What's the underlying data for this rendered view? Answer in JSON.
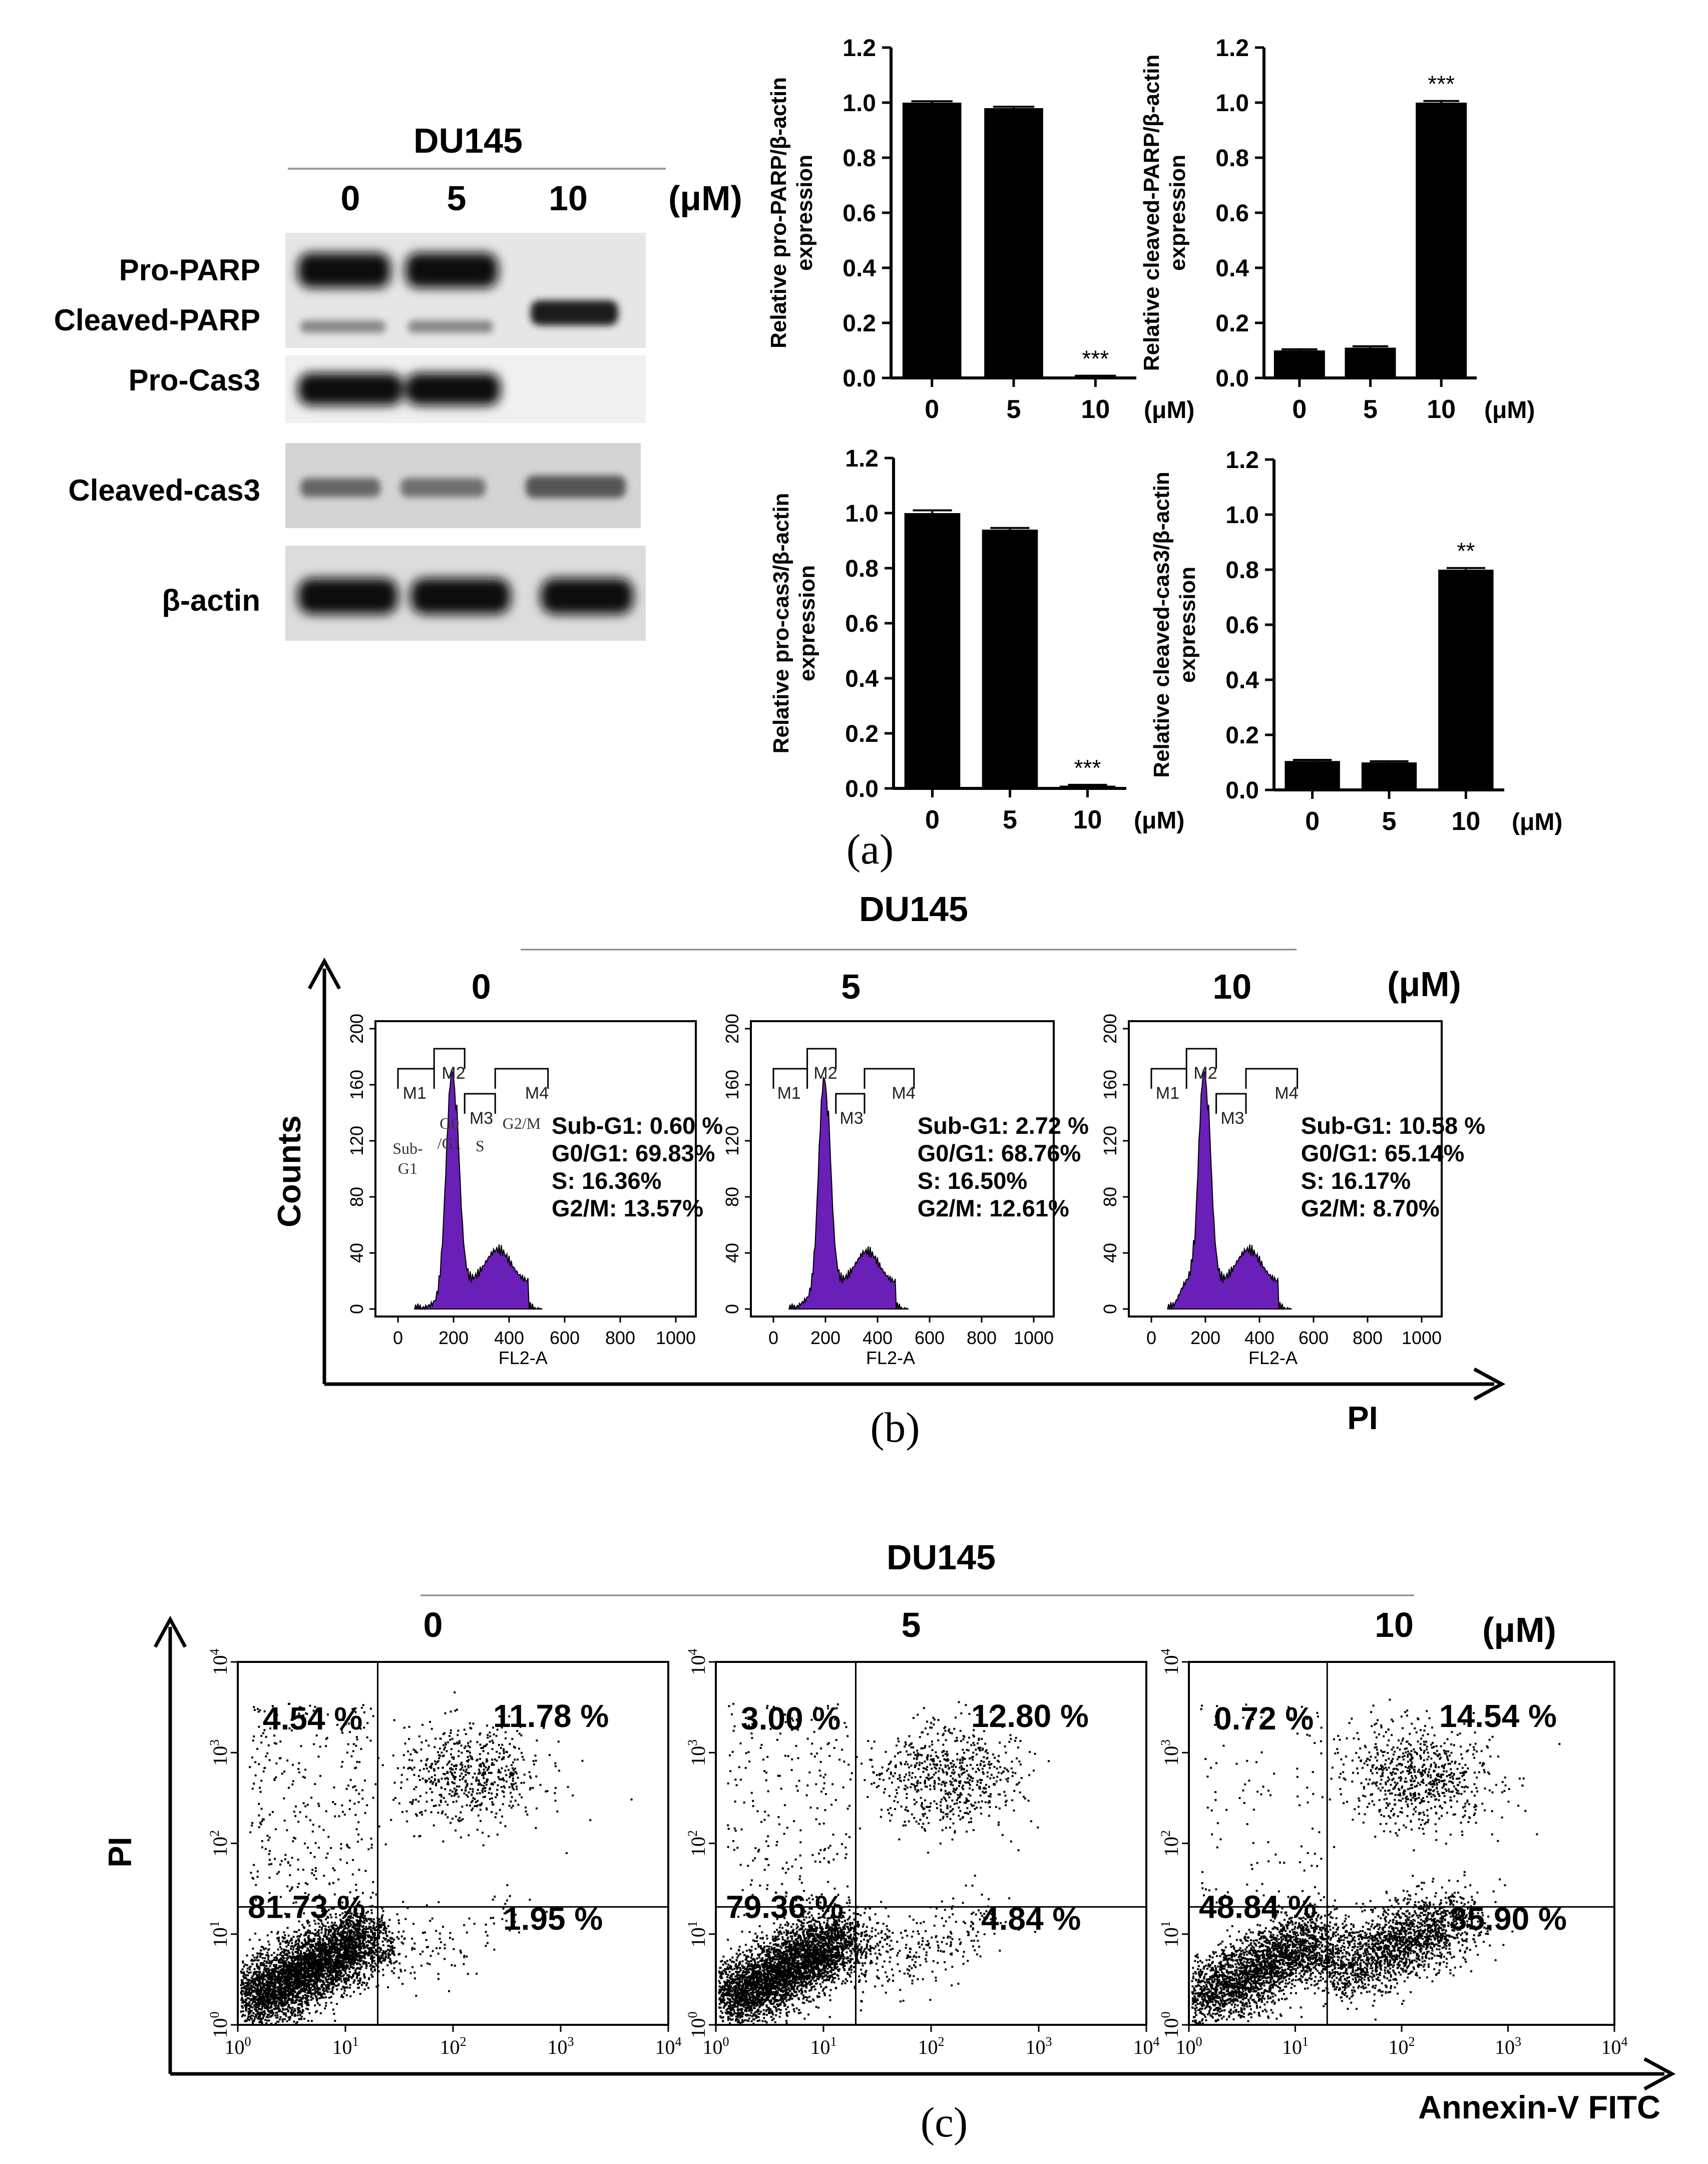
{
  "panel_a": {
    "label": "(a)",
    "blot": {
      "cell_line": "DU145",
      "doses": [
        "0",
        "5",
        "10"
      ],
      "unit": "(μM)",
      "rows": [
        "Pro-PARP",
        "Cleaved-PARP",
        "Pro-Cas3",
        "Cleaved-cas3",
        "β-actin"
      ]
    }
  },
  "chart_data": [
    {
      "type": "bar",
      "id": "pro_parp",
      "categories": [
        "0",
        "5",
        "10"
      ],
      "values": [
        1.0,
        0.98,
        0.005
      ],
      "errors": [
        0.005,
        0.005,
        0.003
      ],
      "annotations": [
        "",
        "",
        "***"
      ],
      "ylabel": [
        "Relative pro-PARP/β-actin",
        "expression"
      ],
      "ylim": [
        0,
        1.2
      ],
      "yticks": [
        "0.0",
        "0.2",
        "0.4",
        "0.6",
        "0.8",
        "1.0",
        "1.2"
      ],
      "unit": "(μM)"
    },
    {
      "type": "bar",
      "id": "cleaved_parp",
      "categories": [
        "0",
        "5",
        "10"
      ],
      "values": [
        0.1,
        0.11,
        1.0
      ],
      "errors": [
        0.004,
        0.005,
        0.006
      ],
      "annotations": [
        "",
        "",
        "***"
      ],
      "ylabel": [
        "Relative cleaved-PARP/β-actin",
        "expression"
      ],
      "ylim": [
        0,
        1.2
      ],
      "yticks": [
        "0.0",
        "0.2",
        "0.4",
        "0.6",
        "0.8",
        "1.0",
        "1.2"
      ],
      "unit": "(μM)"
    },
    {
      "type": "bar",
      "id": "pro_cas3",
      "categories": [
        "0",
        "5",
        "10"
      ],
      "values": [
        1.0,
        0.94,
        0.01
      ],
      "errors": [
        0.01,
        0.006,
        0.003
      ],
      "annotations": [
        "",
        "",
        "***"
      ],
      "ylabel": [
        "Relative pro-cas3/β-actin",
        "expression"
      ],
      "ylim": [
        0,
        1.2
      ],
      "yticks": [
        "0.0",
        "0.2",
        "0.4",
        "0.6",
        "0.8",
        "1.0",
        "1.2"
      ],
      "unit": "(μM)"
    },
    {
      "type": "bar",
      "id": "cleaved_cas3",
      "categories": [
        "0",
        "5",
        "10"
      ],
      "values": [
        0.105,
        0.1,
        0.8
      ],
      "errors": [
        0.004,
        0.004,
        0.006
      ],
      "annotations": [
        "",
        "",
        "**"
      ],
      "ylabel": [
        "Relative cleaved-cas3/β-actin",
        "expression"
      ],
      "ylim": [
        0,
        1.2
      ],
      "yticks": [
        "0.0",
        "0.2",
        "0.4",
        "0.6",
        "0.8",
        "1.0",
        "1.2"
      ],
      "unit": "(μM)"
    }
  ],
  "panel_b": {
    "label": "(b)",
    "title": "DU145",
    "unit": "(μM)",
    "y_axis_label": "Counts",
    "x_axis_label": "PI",
    "x_ticks": [
      "0",
      "200",
      "400",
      "600",
      "800",
      "1000"
    ],
    "y_ticks": [
      "0",
      "40",
      "80",
      "120",
      "160",
      "200"
    ],
    "inner_xlabel": "FL2-A",
    "markers": [
      "M1",
      "M2",
      "M3",
      "M4"
    ],
    "phase_labels": [
      "Sub-",
      "G1",
      "G0",
      "/G1",
      "S",
      "G2/M"
    ],
    "histograms": [
      {
        "dose": "0",
        "stats": [
          "Sub-G1: 0.60 %",
          "G0/G1: 69.83%",
          "S: 16.36%",
          "G2/M: 13.57%"
        ]
      },
      {
        "dose": "5",
        "stats": [
          "Sub-G1: 2.72 %",
          "G0/G1: 68.76%",
          "S: 16.50%",
          "G2/M: 12.61%"
        ]
      },
      {
        "dose": "10",
        "stats": [
          "Sub-G1: 10.58 %",
          "G0/G1: 65.14%",
          "S: 16.17%",
          "G2/M: 8.70%"
        ]
      }
    ],
    "colors": {
      "histogram_fill": "#6a1fb8"
    }
  },
  "panel_c": {
    "label": "(c)",
    "title": "DU145",
    "unit": "(μM)",
    "y_axis_label": "PI",
    "x_axis_label": "Annexin-V FITC",
    "tick_exponents": [
      "0",
      "1",
      "2",
      "3",
      "4"
    ],
    "plots": [
      {
        "dose": "0",
        "quadrants": {
          "ul": "4.54 %",
          "ur": "11.78 %",
          "ll": "81.73 %",
          "lr": "1.95 %"
        }
      },
      {
        "dose": "5",
        "quadrants": {
          "ul": "3.00 %",
          "ur": "12.80 %",
          "ll": "79.36 %",
          "lr": "4.84 %"
        }
      },
      {
        "dose": "10",
        "quadrants": {
          "ul": "0.72 %",
          "ur": "14.54 %",
          "ll": "48.84 %",
          "lr": "35.90 %"
        }
      }
    ]
  }
}
